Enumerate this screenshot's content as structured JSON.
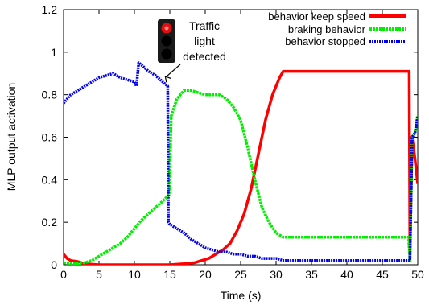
{
  "chart_data": {
    "type": "line",
    "title": "",
    "xlabel": "Time (s)",
    "ylabel": "MLP output activation",
    "xlim": [
      0,
      50
    ],
    "ylim": [
      0,
      1.2
    ],
    "xticks": [
      0,
      5,
      10,
      15,
      20,
      25,
      30,
      35,
      40,
      45,
      50
    ],
    "yticks": [
      0,
      0.2,
      0.4,
      0.6,
      0.8,
      1,
      1.2
    ],
    "grid": false,
    "legend_position": "top-right",
    "series": [
      {
        "name": "behavior keep speed",
        "color": "#ff0000",
        "style": "solid",
        "x": [
          0,
          0.5,
          1,
          2,
          3,
          5,
          8,
          12,
          15,
          17,
          18.5,
          19.5,
          20.5,
          21.5,
          22.5,
          23.5,
          24.5,
          25.5,
          26.5,
          27.5,
          28.5,
          29.5,
          30.5,
          31,
          40,
          48.8,
          48.9,
          49.2,
          49.6,
          50
        ],
        "y": [
          0.05,
          0.03,
          0.02,
          0.015,
          0.005,
          0,
          0,
          0,
          0,
          0.005,
          0.01,
          0.02,
          0.03,
          0.05,
          0.07,
          0.1,
          0.16,
          0.24,
          0.36,
          0.52,
          0.68,
          0.8,
          0.88,
          0.91,
          0.91,
          0.91,
          0.05,
          0.6,
          0.5,
          0.38
        ]
      },
      {
        "name": "braking behavior",
        "color": "#00ee00",
        "style": "dashed",
        "x": [
          0,
          1,
          2,
          3,
          4,
          5,
          6,
          7,
          8,
          9,
          10,
          11,
          12,
          13,
          14,
          14.9,
          15.2,
          16,
          17,
          18,
          19,
          20,
          21,
          22,
          23,
          24,
          25,
          26,
          27,
          28,
          29,
          30,
          31,
          35,
          40,
          48.7,
          48.9,
          49.2,
          49.6,
          50
        ],
        "y": [
          0.01,
          0.005,
          0.005,
          0.01,
          0.02,
          0.04,
          0.06,
          0.08,
          0.1,
          0.13,
          0.17,
          0.21,
          0.24,
          0.27,
          0.3,
          0.33,
          0.7,
          0.78,
          0.82,
          0.82,
          0.81,
          0.8,
          0.8,
          0.8,
          0.78,
          0.74,
          0.68,
          0.55,
          0.4,
          0.27,
          0.2,
          0.15,
          0.13,
          0.13,
          0.13,
          0.13,
          0.02,
          0.6,
          0.62,
          0.7
        ]
      },
      {
        "name": "behavior stopped",
        "color": "#0000ee",
        "style": "dotted",
        "x": [
          0,
          1,
          2,
          3,
          4,
          5,
          6,
          7,
          8,
          9,
          10,
          10.3,
          10.6,
          11,
          12,
          13,
          14,
          14.7,
          14.8,
          15,
          16,
          17,
          18,
          19,
          20,
          21,
          22,
          23,
          24,
          25,
          26,
          27,
          28,
          29,
          30,
          31,
          35,
          40,
          48.7,
          48.9,
          49.2,
          49.6,
          50
        ],
        "y": [
          0.76,
          0.8,
          0.82,
          0.84,
          0.86,
          0.88,
          0.89,
          0.9,
          0.88,
          0.87,
          0.86,
          0.84,
          0.95,
          0.94,
          0.91,
          0.89,
          0.86,
          0.84,
          0.2,
          0.19,
          0.17,
          0.15,
          0.12,
          0.1,
          0.08,
          0.07,
          0.06,
          0.06,
          0.05,
          0.05,
          0.04,
          0.04,
          0.03,
          0.03,
          0.03,
          0.02,
          0.02,
          0.02,
          0.02,
          0.02,
          0.6,
          0.62,
          0.7
        ]
      }
    ],
    "annotations": [
      {
        "text_lines": [
          "Traffic",
          "light",
          "detected"
        ],
        "icon": "traffic-light-icon",
        "arrow_to": [
          15,
          0.86
        ]
      }
    ]
  }
}
